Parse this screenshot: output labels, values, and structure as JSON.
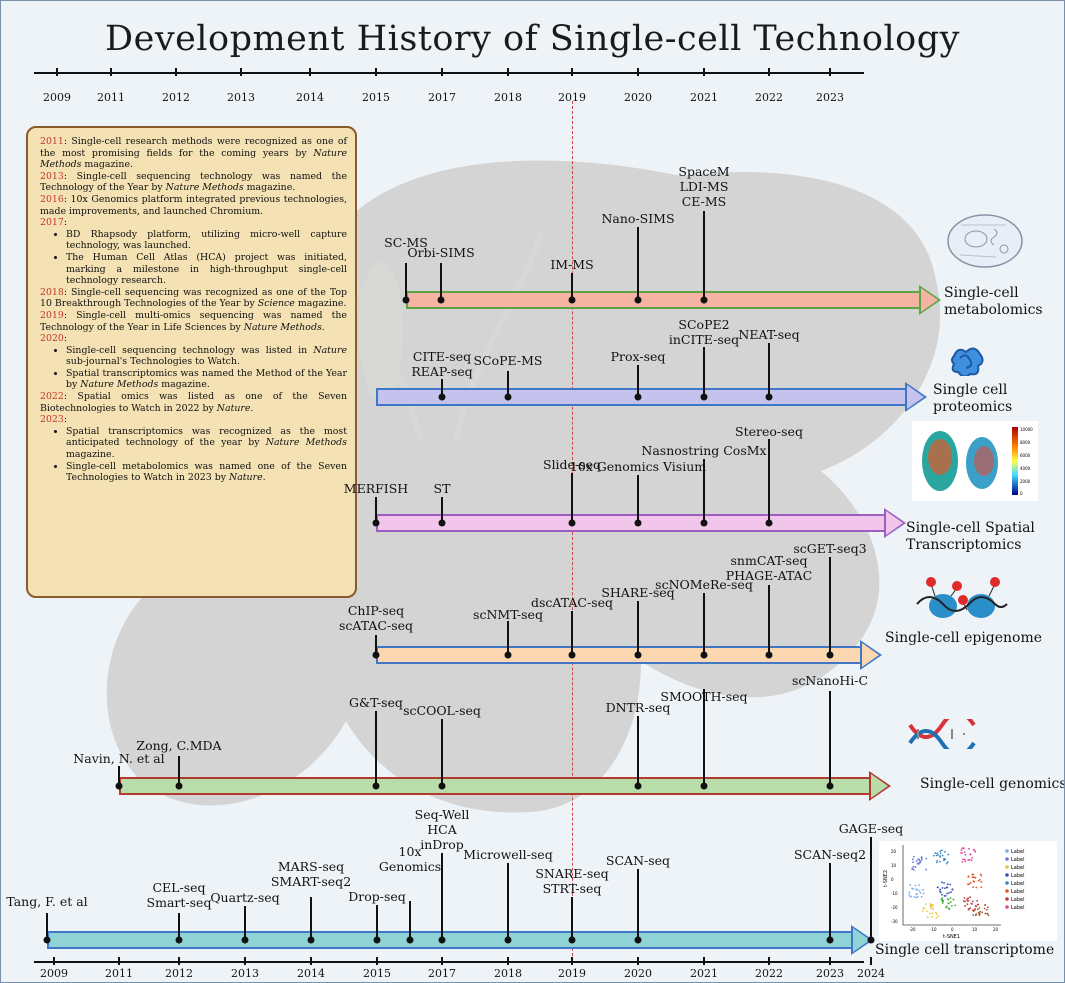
{
  "title": "Development History of Single-cell Technology",
  "top_axis_years": [
    "2009",
    "2011",
    "2012",
    "2013",
    "2014",
    "2015",
    "2017",
    "2018",
    "2019",
    "2020",
    "2021",
    "2022",
    "2023"
  ],
  "bottom_axis_years": [
    "2009",
    "2011",
    "2012",
    "2013",
    "2014",
    "2015",
    "2017",
    "2018",
    "2019",
    "2020",
    "2021",
    "2022",
    "2023",
    "2024"
  ],
  "infobox": {
    "p2011_year": "2011",
    "p2011_a": ": Single-cell research methods were recognized as one of the most promising fields for the coming years by ",
    "p2011_em": "Nature Methods",
    "p2011_b": " magazine.",
    "p2013_year": "2013",
    "p2013_a": ": Single-cell sequencing technology was named the Technology of the Year by ",
    "p2013_em": "Nature Methods",
    "p2013_b": " magazine.",
    "p2016_year": "2016",
    "p2016_a": ": 10x Genomics platform integrated previous technologies, made improvements, and launched Chromium.",
    "p2017_year": "2017",
    "p2017_colon": ":",
    "p2017_b1": "BD Rhapsody platform, utilizing micro-well capture technology, was launched.",
    "p2017_b2": "The Human Cell Atlas (HCA) project was initiated, marking a milestone in high-throughput single-cell technology research.",
    "p2018_year": "2018",
    "p2018_a": ": Single-cell sequencing was recognized as one of the Top 10 Breakthrough Technologies of the Year by ",
    "p2018_em": "Science",
    "p2018_b": " magazine.",
    "p2019_year": "2019",
    "p2019_a": ": Single-cell multi-omics sequencing was named the Technology of the Year in Life Sciences by ",
    "p2019_em": "Nature Methods",
    "p2019_b": ".",
    "p2020_year": "2020",
    "p2020_colon": ":",
    "p2020_b1_a": "Single-cell sequencing technology was listed in ",
    "p2020_b1_em": "Nature",
    "p2020_b1_b": " sub-journal's Technologies to Watch.",
    "p2020_b2_a": "Spatial transcriptomics was named the Method of the Year by ",
    "p2020_b2_em": "Nature Methods",
    "p2020_b2_b": " magazine.",
    "p2022_year": "2022",
    "p2022_a": ": Spatial omics was listed as one of the Seven Biotechnologies to Watch in 2022 by ",
    "p2022_em": "Nature",
    "p2022_b": ".",
    "p2023_year": "2023",
    "p2023_colon": ":",
    "p2023_b1_a": "Spatial transcriptomics was recognized as the most anticipated technology of the year by ",
    "p2023_b1_em": "Nature Methods",
    "p2023_b1_b": " magazine.",
    "p2023_b2_a": "Single-cell metabolomics was named one of the Seven Technologies to Watch in 2023 by ",
    "p2023_b2_em": "Nature",
    "p2023_b2_b": "."
  },
  "categories": {
    "metabolomics": "Single-cell\nmetabolomics",
    "proteomics": "Single cell\nproteomics",
    "spatial": "Single-cell Spatial\nTranscriptomics",
    "epigenome": "Single-cell epigenome",
    "genomics": "Single-cell genomics",
    "transcriptome": "Single cell transcriptome"
  },
  "colors": {
    "metabolomics_fill": "#f4b3a3",
    "metabolomics_border": "#5da544",
    "proteomics_fill": "#c6c2ee",
    "proteomics_border": "#3f76c6",
    "spatial_fill": "#f2c6ea",
    "spatial_border": "#9b5fc0",
    "epigenome_fill": "#fbd7b1",
    "epigenome_border": "#3f76c6",
    "genomics_fill": "#b8dcaa",
    "genomics_border": "#b23a2e",
    "transcriptome_fill": "#8fd3d4",
    "transcriptome_border": "#3f76c6",
    "year_red": "#c0392b",
    "infobox_fill": "#f4e2b4"
  },
  "milestones": {
    "metabolomics": [
      {
        "label": "SC-MS"
      },
      {
        "label": "Orbi-SIMS"
      },
      {
        "label": "IM-MS"
      },
      {
        "label": "Nano-SIMS"
      },
      {
        "label": "SpaceM\nLDI-MS\nCE-MS"
      }
    ],
    "proteomics": [
      {
        "label": "CITE-seq\nREAP-seq"
      },
      {
        "label": "SCoPE-MS"
      },
      {
        "label": "Prox-seq"
      },
      {
        "label": "SCoPE2\ninCITE-seq"
      },
      {
        "label": "NEAT-seq"
      }
    ],
    "spatial": [
      {
        "label": "MERFISH"
      },
      {
        "label": "ST"
      },
      {
        "label": "Slide-seq"
      },
      {
        "label": "10x Genomics Visium"
      },
      {
        "label": "Nasnostring CosMx"
      },
      {
        "label": "Stereo-seq"
      }
    ],
    "epigenome": [
      {
        "label": "ChIP-seq\nscATAC-seq"
      },
      {
        "label": "scNMT-seq"
      },
      {
        "label": "dscATAC-seq"
      },
      {
        "label": "SHARE-seq"
      },
      {
        "label": "scNOMeRe-seq"
      },
      {
        "label": "snmCAT-seq\nPHAGE-ATAC"
      },
      {
        "label": "scGET-seq3"
      }
    ],
    "genomics": [
      {
        "label": "Navin, N. et al"
      },
      {
        "label": "Zong, C.MDA"
      },
      {
        "label": "G&T-seq"
      },
      {
        "label": "scCOOL-seq"
      },
      {
        "label": "DNTR-seq"
      },
      {
        "label": "SMOOTH-seq"
      },
      {
        "label": "scNanoHi-C"
      }
    ],
    "transcriptome": [
      {
        "label": "Tang, F. et al"
      },
      {
        "label": "CEL-seq\nSmart-seq"
      },
      {
        "label": "Quartz-seq"
      },
      {
        "label": "MARS-seq\nSMART-seq2"
      },
      {
        "label": "Drop-seq"
      },
      {
        "label": "10x\nGenomics"
      },
      {
        "label": "Seq-Well\nHCA\ninDrop"
      },
      {
        "label": "Microwell-seq"
      },
      {
        "label": "SNARE-seq\nSTRT-seq"
      },
      {
        "label": "SCAN-seq"
      },
      {
        "label": "SCAN-seq2"
      },
      {
        "label": "GAGE-seq"
      }
    ]
  },
  "tsne": {
    "legend": [
      "Label",
      "Label",
      "Label",
      "Label",
      "Label",
      "Label",
      "Label",
      "Label"
    ],
    "xlabel": "t-SNE1",
    "ylabel": "t-SNE2",
    "xticks": [
      "-20",
      "-10",
      "0",
      "10",
      "20"
    ],
    "yticks": [
      "20",
      "10",
      "0",
      "-10",
      "-20",
      "-30"
    ]
  },
  "spatial_image": {
    "colorbar_ticks": [
      "10000",
      "8000",
      "6000",
      "4000",
      "2000",
      "0"
    ]
  }
}
